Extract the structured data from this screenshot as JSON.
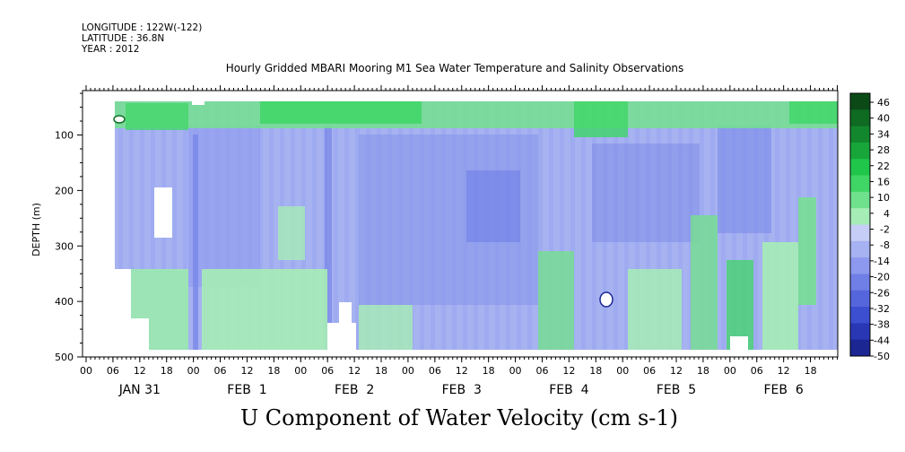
{
  "header": {
    "longitude": "LONGITUDE : 122W(-122)",
    "latitude": "LATITUDE : 36.8N",
    "year": "YEAR : 2012"
  },
  "chart_data": {
    "type": "heatmap",
    "title": "Hourly Gridded MBARI Mooring M1 Sea Water Temperature and Salinity Observations",
    "bottom_title": "U Component of Water Velocity (cm s-1)",
    "ylabel": "DEPTH (m)",
    "ylim": [
      500,
      20
    ],
    "y_ticks": [
      "100",
      "200",
      "300",
      "400",
      "500"
    ],
    "y_tick_values": [
      100,
      200,
      300,
      400,
      500
    ],
    "x_hour_ticks": [
      "00",
      "06",
      "12",
      "18",
      "00",
      "06",
      "12",
      "18",
      "00",
      "06",
      "12",
      "18",
      "00",
      "06",
      "12",
      "18",
      "00",
      "06",
      "12",
      "18",
      "00",
      "06",
      "12",
      "18",
      "00",
      "06",
      "12",
      "18"
    ],
    "x_date_labels": [
      "JAN 31",
      "FEB  1",
      "FEB  2",
      "FEB  3",
      "FEB  4",
      "FEB  5",
      "FEB  6"
    ],
    "colorbar": {
      "labels": [
        "46",
        "40",
        "34",
        "28",
        "22",
        "16",
        "10",
        "4",
        "-2",
        "-8",
        "-14",
        "-20",
        "-26",
        "-32",
        "-38",
        "-44",
        "-50"
      ],
      "values": [
        46,
        40,
        34,
        28,
        22,
        16,
        10,
        4,
        -2,
        -8,
        -14,
        -20,
        -26,
        -32,
        -38,
        -44,
        -50
      ],
      "band_colors": [
        "#0b4a17",
        "#0f6a22",
        "#13872d",
        "#18a63a",
        "#20c64a",
        "#3fd666",
        "#6fe08c",
        "#a6ecb6",
        "#c6cdf6",
        "#a6b2f2",
        "#8c99ee",
        "#6f7fe6",
        "#5566dc",
        "#3c4fd1",
        "#2a37b5",
        "#1c2693"
      ]
    }
  }
}
